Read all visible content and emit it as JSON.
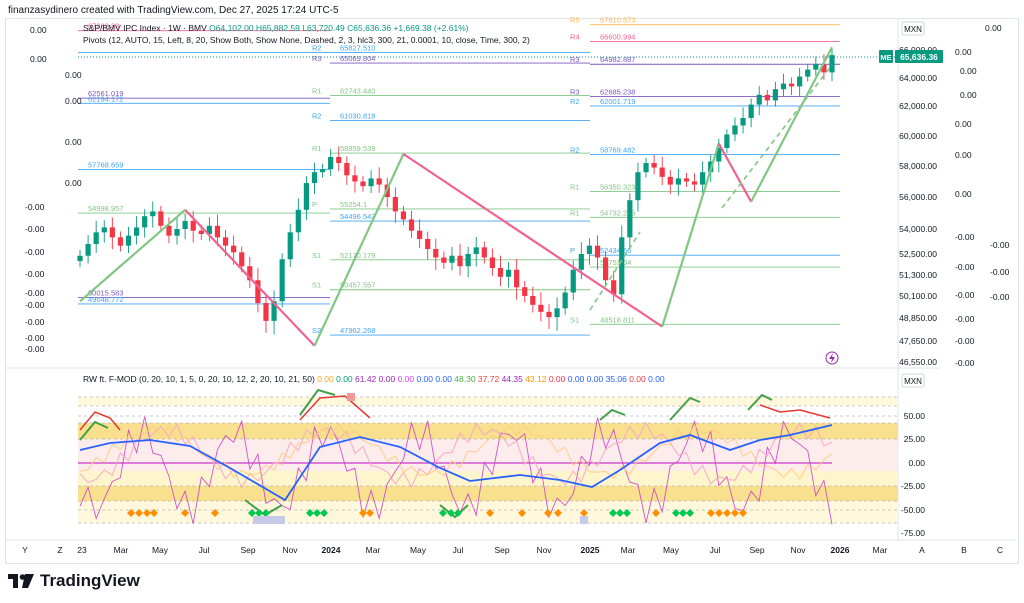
{
  "header": {
    "credit": "finanzasydinero created with TradingView.com, Dec 27, 2025 17:24 UTC-5"
  },
  "legend": {
    "symbol": "S&P/BMV IPC Index · 1W · BMV",
    "ohlc": "O64,102.00  H65,882.59  L63,720.49  C65,636.36  +1,669.38 (+2.61%)",
    "pivots": "Pivots (12, AUTO, 15, Left, 8, 20, Show Both, Show None, Dashed, 2, 3, hlc3, 300, 21, 0.0001, 10, close, Time, 300, 2)"
  },
  "indicator": {
    "legend": "RW ft. F-MOD (0, 20, 10, 1, 5, 0, 20, 10, 12, 2, 20, 10, 21, 50)",
    "values": [
      "0.00",
      "0.00",
      "61.42",
      "0.00",
      "0.00",
      "0.00",
      "0.00",
      "48.30",
      "37.72",
      "44.35",
      "43.12",
      "0.00",
      "0.00",
      "0.00",
      "35.06",
      "0.00",
      "0.00"
    ],
    "value_colors": [
      "#f5a623",
      "#089981",
      "#9c27b0",
      "#9c27b0",
      "#e040fb",
      "#2962ff",
      "#2962ff",
      "#4caf50",
      "#f44336",
      "#9c27b0",
      "#ff9800",
      "#f23645",
      "#2962ff",
      "#2962ff",
      "#2962ff",
      "#f23645",
      "#2962ff"
    ],
    "currency": "MXN"
  },
  "price_axis": {
    "currency": "MXN",
    "ticks": [
      "66,000.00",
      "64,000.00",
      "62,000.00",
      "60,000.00",
      "58,000.00",
      "56,000.00",
      "54,000.00",
      "52,500.00",
      "51,300.00",
      "50,100.00",
      "48,850.00",
      "47,650.00",
      "46,550.00"
    ],
    "last_price_label": "65,636.36",
    "last_price_tag": "ME"
  },
  "ind_axis": {
    "ticks": [
      "50.00",
      "25.00",
      "0.00",
      "-25.00",
      "-50.00",
      "-75.00"
    ]
  },
  "left_overlay_labels": [
    "0.00",
    "0.00",
    "0.00",
    "0.00",
    "0.00",
    "0.00",
    "-0.00",
    "-0.00",
    "-0.00",
    "-0.00",
    "-0.00",
    "-0.00",
    "-0.00",
    "-0.00",
    "-0.00"
  ],
  "right_overlay_labels": [
    "0.00",
    "0.00",
    "0.00",
    "0.00",
    "0.00",
    "0.00",
    "0.00",
    "-0.00",
    "-0.00",
    "-0.00",
    "-0.00",
    "-0.00",
    "-0.00",
    "-0.00",
    "-0.00",
    "-0.00"
  ],
  "time_axis": [
    "Y",
    "Z",
    "23",
    "Mar",
    "May",
    "Jul",
    "Sep",
    "Nov",
    "2024",
    "Mar",
    "May",
    "Jul",
    "Sep",
    "Nov",
    "2025",
    "Mar",
    "May",
    "Jul",
    "Sep",
    "Nov",
    "2026",
    "Mar",
    "A",
    "B",
    "C"
  ],
  "pivot_labels_left": [
    {
      "tag": "R2",
      "value": "65827.510"
    },
    {
      "tag": "R3",
      "value": "65069.804"
    },
    {
      "tag": "R1",
      "value": "62743.440"
    },
    {
      "tag": "R2",
      "value": "61030.818"
    },
    {
      "tag": "R1",
      "value": "58859.539"
    },
    {
      "tag": "P",
      "value": "55254.1"
    },
    {
      "tag": "",
      "value": "54496.543"
    },
    {
      "tag": "S1",
      "value": "52170.179"
    },
    {
      "tag": "S1",
      "value": "50457.557"
    },
    {
      "tag": "S2",
      "value": "47962.268"
    },
    {
      "tag": "",
      "value": "62561.019"
    },
    {
      "tag": "",
      "value": "62194.172"
    },
    {
      "tag": "",
      "value": "57768.659"
    },
    {
      "tag": "",
      "value": "54998.957"
    },
    {
      "tag": "",
      "value": "50015.583"
    },
    {
      "tag": "",
      "value": "49648.772"
    },
    {
      "tag": "",
      "value": "67382.83"
    }
  ],
  "pivot_labels_right": [
    {
      "tag": "R5",
      "value": "67810.573"
    },
    {
      "tag": "R4",
      "value": "66600.994"
    },
    {
      "tag": "R3",
      "value": "64982.887"
    },
    {
      "tag": "R3",
      "value": "62685.238"
    },
    {
      "tag": "R2",
      "value": "62001.719"
    },
    {
      "tag": "R2",
      "value": "58769.482"
    },
    {
      "tag": "R1",
      "value": "56350.323"
    },
    {
      "tag": "R1",
      "value": "54732.215"
    },
    {
      "tag": "P",
      "value": "52434.56"
    },
    {
      "tag": "",
      "value": "51751.04"
    },
    {
      "tag": "S1",
      "value": "48518.811"
    }
  ],
  "brand": {
    "name": "TradingView"
  },
  "colors": {
    "up": "#089981",
    "down": "#f23645",
    "zigzag_up": "#81c784",
    "zigzag_down": "#f06292",
    "ema": "#2962ff",
    "osc": "#9c27b0",
    "band": "#f8e08e"
  },
  "chart_data": {
    "type": "candlestick",
    "title": "S&P/BMV IPC Index · 1W · BMV",
    "ylabel": "MXN",
    "ylim": [
      46550,
      66500
    ],
    "x_range": [
      "2022-12",
      "2026-03"
    ],
    "close_last": 65636.36,
    "weekly_closes_approx": [
      52400,
      53100,
      53800,
      54100,
      53500,
      53000,
      53600,
      54100,
      54800,
      55100,
      54200,
      53600,
      54000,
      54500,
      53900,
      53700,
      54200,
      53500,
      53000,
      52600,
      51800,
      51000,
      49700,
      48700,
      49800,
      52200,
      53800,
      55200,
      56900,
      57600,
      57800,
      58600,
      58200,
      57400,
      57000,
      56700,
      57200,
      56800,
      56000,
      55100,
      54600,
      53900,
      53400,
      52800,
      52300,
      52000,
      52400,
      51800,
      52500,
      52900,
      52300,
      51700,
      51200,
      51600,
      50600,
      50100,
      49600,
      49200,
      48900,
      49400,
      50300,
      51600,
      52500,
      53000,
      52300,
      51000,
      50200,
      53500,
      55800,
      57600,
      58200,
      57900,
      57300,
      56800,
      57200,
      57000,
      56800,
      57600,
      58300,
      59200,
      60100,
      60700,
      61200,
      62100,
      62800,
      62400,
      63200,
      63600,
      63400,
      64100,
      64600,
      65000,
      64400,
      65636
    ]
  }
}
